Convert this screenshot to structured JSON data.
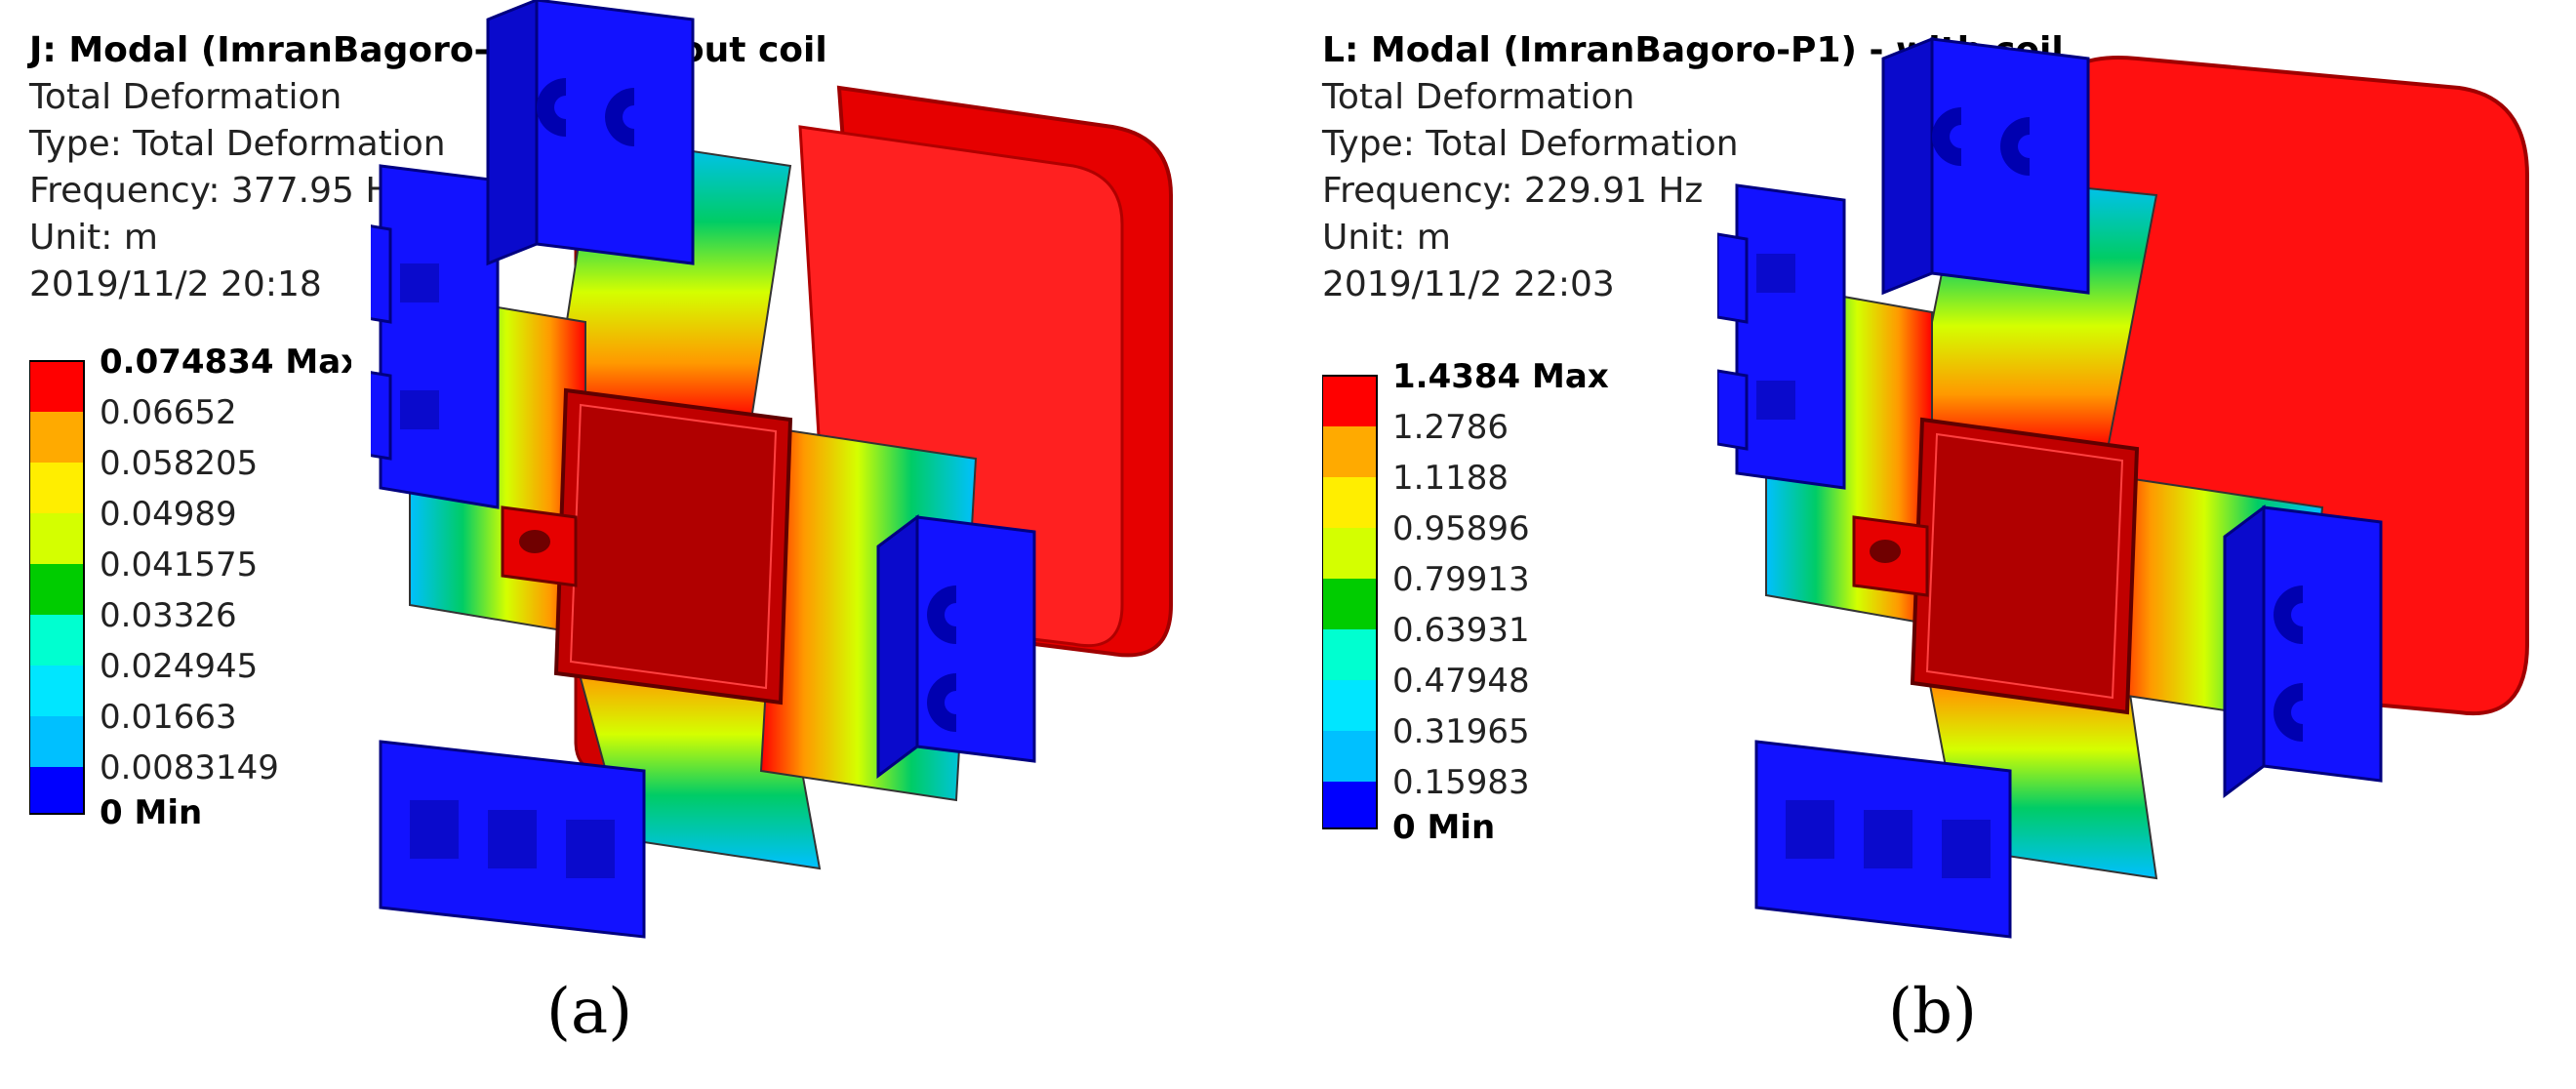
{
  "panels": [
    {
      "title": "J: Modal (ImranBagoro-P1) - without coil",
      "lines": [
        "Total Deformation",
        "Type: Total Deformation",
        "Frequency: 377.95 Hz",
        "Unit: m",
        "2019/11/2 20:18"
      ],
      "legend": [
        "0.074834 Max",
        "0.06652",
        "0.058205",
        "0.04989",
        "0.041575",
        "0.03326",
        "0.024945",
        "0.01663",
        "0.0083149",
        "0 Min"
      ],
      "caption": "(a)"
    },
    {
      "title": "L: Modal (ImranBagoro-P1) - with coil",
      "lines": [
        "Total Deformation",
        "Type: Total Deformation",
        "Frequency: 229.91 Hz",
        "Unit: m",
        "2019/11/2 22:03"
      ],
      "legend": [
        "1.4384 Max",
        "1.2786",
        "1.1188",
        "0.95896",
        "0.79913",
        "0.63931",
        "0.47948",
        "0.31965",
        "0.15983",
        "0 Min"
      ],
      "caption": "(b)"
    }
  ],
  "colors": {
    "scale": [
      "#ff0000",
      "#ffaa00",
      "#ffee00",
      "#d4ff00",
      "#00cc00",
      "#00ffd0",
      "#00e6ff",
      "#00c0ff",
      "#0000ff"
    ],
    "frame_red": "#e60000",
    "block_blue": "#1212ff"
  }
}
